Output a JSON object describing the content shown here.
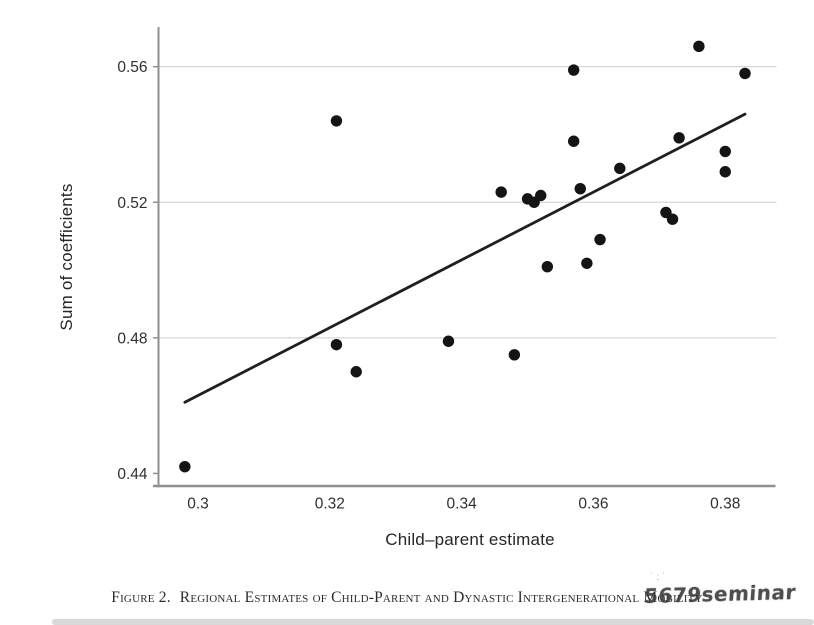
{
  "figure": {
    "caption_prefix": "Figure 2.",
    "caption_body": "Regional Estimates of Child-Parent and Dynastic Intergenerational Mobility"
  },
  "watermark": {
    "text": "5679seminar",
    "marks": "˙:˙"
  },
  "chart_data": {
    "type": "scatter",
    "title": "",
    "xlabel": "Child–parent estimate",
    "ylabel": "Sum of coefficients",
    "xlim": [
      0.294,
      0.3877
    ],
    "ylim": [
      0.4363,
      0.5717
    ],
    "x_ticks": [
      0.3,
      0.32,
      0.34,
      0.36,
      0.38
    ],
    "x_tick_labels": [
      "0.3",
      "0.32",
      "0.34",
      "0.36",
      "0.38"
    ],
    "y_ticks": [
      0.44,
      0.48,
      0.52,
      0.56
    ],
    "y_tick_labels": [
      "0.44",
      "0.48",
      "0.52",
      "0.56"
    ],
    "gridlines_y": [
      0.48,
      0.52,
      0.56
    ],
    "grid": "horizontal-only",
    "legend": "none",
    "points": [
      [
        0.298,
        0.442
      ],
      [
        0.321,
        0.478
      ],
      [
        0.324,
        0.47
      ],
      [
        0.321,
        0.544
      ],
      [
        0.338,
        0.479
      ],
      [
        0.348,
        0.475
      ],
      [
        0.346,
        0.523
      ],
      [
        0.35,
        0.521
      ],
      [
        0.351,
        0.52
      ],
      [
        0.352,
        0.522
      ],
      [
        0.358,
        0.524
      ],
      [
        0.364,
        0.53
      ],
      [
        0.353,
        0.501
      ],
      [
        0.359,
        0.502
      ],
      [
        0.361,
        0.509
      ],
      [
        0.357,
        0.538
      ],
      [
        0.357,
        0.559
      ],
      [
        0.376,
        0.566
      ],
      [
        0.383,
        0.558
      ],
      [
        0.373,
        0.539
      ],
      [
        0.38,
        0.535
      ],
      [
        0.38,
        0.529
      ],
      [
        0.371,
        0.517
      ],
      [
        0.372,
        0.515
      ]
    ],
    "trend_line": {
      "x1": 0.298,
      "y1": 0.461,
      "x2": 0.383,
      "y2": 0.546
    },
    "colors": {
      "point": "#141414",
      "trend_line": "#1f1f1f",
      "grid": "#d7d7d7",
      "axis": "#909090",
      "tick_text": "#303030"
    }
  }
}
